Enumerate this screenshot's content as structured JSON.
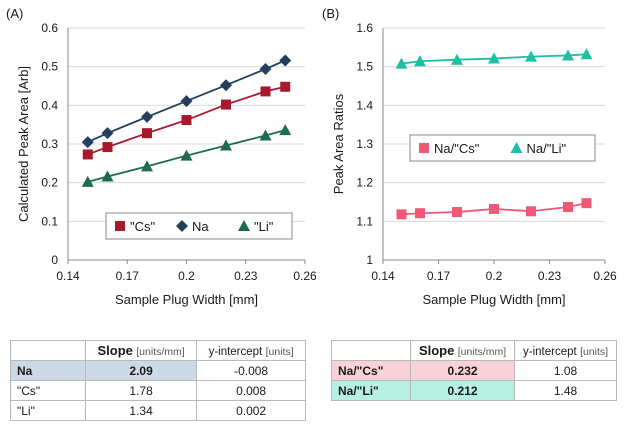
{
  "chart_data": [
    {
      "panel_label": "(A)",
      "type": "line",
      "xlabel": "Sample Plug Width [mm]",
      "ylabel": "Calculated Peak Area [Arb]",
      "xlim": [
        0.14,
        0.26
      ],
      "ylim": [
        0,
        0.6
      ],
      "x_ticks": [
        "0.14",
        "0.17",
        "0.2",
        "0.23",
        "0.26"
      ],
      "y_ticks": [
        "0",
        "0.1",
        "0.2",
        "0.3",
        "0.4",
        "0.5",
        "0.6"
      ],
      "grid": "horizontal",
      "legend_position": "bottom-right",
      "series": [
        {
          "name": "\"Cs\"",
          "marker": "square",
          "color": "#a8192e",
          "x": [
            0.15,
            0.16,
            0.18,
            0.2,
            0.22,
            0.24,
            0.25
          ],
          "y": [
            0.273,
            0.292,
            0.328,
            0.362,
            0.402,
            0.436,
            0.448
          ]
        },
        {
          "name": "Na",
          "marker": "diamond",
          "color": "#243f5c",
          "x": [
            0.15,
            0.16,
            0.18,
            0.2,
            0.22,
            0.24,
            0.25
          ],
          "y": [
            0.305,
            0.328,
            0.37,
            0.411,
            0.452,
            0.494,
            0.516
          ]
        },
        {
          "name": "\"Li\"",
          "marker": "triangle",
          "color": "#1d6b52",
          "x": [
            0.15,
            0.16,
            0.18,
            0.2,
            0.22,
            0.24,
            0.25
          ],
          "y": [
            0.202,
            0.216,
            0.242,
            0.27,
            0.296,
            0.322,
            0.336
          ]
        }
      ]
    },
    {
      "panel_label": "(B)",
      "type": "line",
      "xlabel": "Sample Plug Width [mm]",
      "ylabel": "Peak Area Ratios",
      "xlim": [
        0.14,
        0.26
      ],
      "ylim": [
        1,
        1.6
      ],
      "x_ticks": [
        "0.14",
        "0.17",
        "0.2",
        "0.23",
        "0.26"
      ],
      "y_ticks": [
        "1",
        "1.1",
        "1.2",
        "1.3",
        "1.4",
        "1.5",
        "1.6"
      ],
      "grid": "horizontal",
      "legend_position": "center",
      "series": [
        {
          "name": "Na/\"Cs\"",
          "marker": "square",
          "color": "#ee5a76",
          "x": [
            0.15,
            0.16,
            0.18,
            0.2,
            0.22,
            0.24,
            0.25
          ],
          "y": [
            1.118,
            1.121,
            1.124,
            1.132,
            1.126,
            1.137,
            1.147
          ]
        },
        {
          "name": "Na/\"Li\"",
          "marker": "triangle",
          "color": "#1cc0a2",
          "x": [
            0.15,
            0.16,
            0.18,
            0.2,
            0.22,
            0.24,
            0.25
          ],
          "y": [
            1.508,
            1.514,
            1.518,
            1.521,
            1.526,
            1.529,
            1.532
          ]
        }
      ]
    }
  ],
  "tables": {
    "a": {
      "headers": {
        "slope": "Slope",
        "slope_units": "[units/mm]",
        "intercept": "y-intercept",
        "intercept_units": "[units]"
      },
      "rows": [
        {
          "label": "Na",
          "slope": "2.09",
          "intercept": "-0.008",
          "highlight": "#cdd9e6"
        },
        {
          "label": "\"Cs\"",
          "slope": "1.78",
          "intercept": "0.008"
        },
        {
          "label": "\"Li\"",
          "slope": "1.34",
          "intercept": "0.002"
        }
      ]
    },
    "b": {
      "headers": {
        "slope": "Slope",
        "slope_units": "[units/mm]",
        "intercept": "y-intercept",
        "intercept_units": "[units]"
      },
      "rows": [
        {
          "label": "Na/\"Cs\"",
          "slope": "0.232",
          "intercept": "1.08",
          "highlight": "#f9d1d9"
        },
        {
          "label": "Na/\"Li\"",
          "slope": "0.212",
          "intercept": "1.48",
          "highlight": "#b6efe3"
        }
      ]
    }
  }
}
